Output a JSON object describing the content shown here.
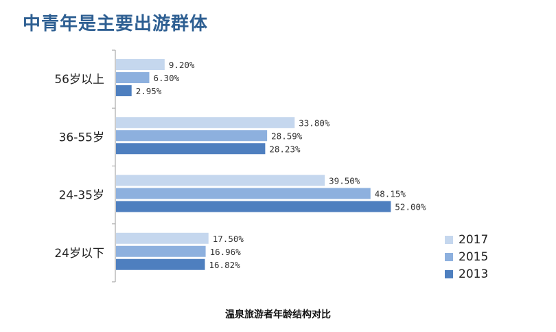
{
  "title": "中青年是主要出游群体",
  "chart_data": {
    "type": "bar",
    "orientation": "horizontal",
    "caption": "温泉旅游者年龄结构对比",
    "categories": [
      "56岁以上",
      "36-55岁",
      "24-35岁",
      "24岁以下"
    ],
    "series": [
      {
        "name": "2017",
        "color": "#c5d7ee",
        "values": [
          9.2,
          33.8,
          39.5,
          17.5
        ],
        "labels": [
          "9.20%",
          "33.80%",
          "39.50%",
          "17.50%"
        ]
      },
      {
        "name": "2015",
        "color": "#8db0de",
        "values": [
          6.3,
          28.59,
          48.15,
          16.96
        ],
        "labels": [
          "6.30%",
          "28.59%",
          "48.15%",
          "16.96%"
        ]
      },
      {
        "name": "2013",
        "color": "#4e7fbf",
        "values": [
          2.95,
          28.23,
          52.0,
          16.82
        ],
        "labels": [
          "2.95%",
          "28.23%",
          "52.00%",
          "16.82%"
        ]
      }
    ],
    "xlim": [
      0,
      60
    ],
    "grid": false,
    "legend_position": "bottom-right"
  }
}
